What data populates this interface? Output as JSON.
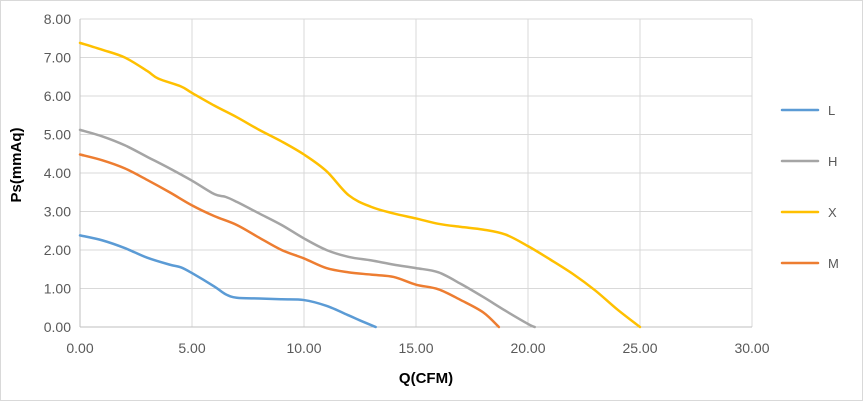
{
  "chart_data": {
    "type": "line",
    "title": "",
    "xlabel": "Q(CFM)",
    "ylabel": "Ps(mmAq)",
    "xlim": [
      0,
      30
    ],
    "ylim": [
      0,
      8
    ],
    "xticks": [
      "0.00",
      "5.00",
      "10.00",
      "15.00",
      "20.00",
      "25.00",
      "30.00"
    ],
    "yticks": [
      "0.00",
      "1.00",
      "2.00",
      "3.00",
      "4.00",
      "5.00",
      "6.00",
      "7.00",
      "8.00"
    ],
    "grid": true,
    "legend_position": "right",
    "series": [
      {
        "name": "L",
        "color": "#5b9bd5",
        "points": [
          [
            0,
            2.38
          ],
          [
            1,
            2.25
          ],
          [
            2,
            2.05
          ],
          [
            3,
            1.8
          ],
          [
            4,
            1.62
          ],
          [
            4.5,
            1.55
          ],
          [
            5,
            1.4
          ],
          [
            6,
            1.05
          ],
          [
            6.5,
            0.85
          ],
          [
            7,
            0.76
          ],
          [
            8,
            0.74
          ],
          [
            9,
            0.72
          ],
          [
            10,
            0.7
          ],
          [
            11,
            0.55
          ],
          [
            12,
            0.3
          ],
          [
            12.5,
            0.17
          ],
          [
            13.2,
            0.0
          ]
        ]
      },
      {
        "name": "H",
        "color": "#a5a5a5",
        "points": [
          [
            0,
            5.12
          ],
          [
            1,
            4.95
          ],
          [
            2,
            4.72
          ],
          [
            3,
            4.42
          ],
          [
            4,
            4.12
          ],
          [
            5,
            3.8
          ],
          [
            6,
            3.45
          ],
          [
            6.5,
            3.38
          ],
          [
            7,
            3.25
          ],
          [
            8,
            2.95
          ],
          [
            9,
            2.65
          ],
          [
            10,
            2.3
          ],
          [
            11,
            2.0
          ],
          [
            12,
            1.82
          ],
          [
            13,
            1.73
          ],
          [
            14,
            1.62
          ],
          [
            15,
            1.53
          ],
          [
            16,
            1.42
          ],
          [
            17,
            1.12
          ],
          [
            18,
            0.78
          ],
          [
            19,
            0.42
          ],
          [
            20,
            0.08
          ],
          [
            20.3,
            0.0
          ]
        ]
      },
      {
        "name": "X",
        "color": "#ffc000",
        "points": [
          [
            0,
            7.38
          ],
          [
            1,
            7.2
          ],
          [
            2,
            7.0
          ],
          [
            3,
            6.65
          ],
          [
            3.5,
            6.45
          ],
          [
            4.5,
            6.25
          ],
          [
            5,
            6.08
          ],
          [
            6,
            5.75
          ],
          [
            7,
            5.45
          ],
          [
            8,
            5.12
          ],
          [
            9,
            4.82
          ],
          [
            10,
            4.48
          ],
          [
            11,
            4.05
          ],
          [
            12,
            3.42
          ],
          [
            13,
            3.12
          ],
          [
            14,
            2.95
          ],
          [
            15,
            2.82
          ],
          [
            16,
            2.68
          ],
          [
            17,
            2.6
          ],
          [
            18,
            2.53
          ],
          [
            19,
            2.4
          ],
          [
            20,
            2.1
          ],
          [
            21,
            1.75
          ],
          [
            22,
            1.38
          ],
          [
            23,
            0.95
          ],
          [
            24,
            0.45
          ],
          [
            25,
            0.0
          ]
        ]
      },
      {
        "name": "M",
        "color": "#ed7d31",
        "points": [
          [
            0,
            4.48
          ],
          [
            1,
            4.33
          ],
          [
            2,
            4.12
          ],
          [
            3,
            3.82
          ],
          [
            4,
            3.5
          ],
          [
            5,
            3.16
          ],
          [
            6,
            2.88
          ],
          [
            7,
            2.65
          ],
          [
            8,
            2.32
          ],
          [
            9,
            2.0
          ],
          [
            10,
            1.78
          ],
          [
            11,
            1.53
          ],
          [
            12,
            1.42
          ],
          [
            13,
            1.36
          ],
          [
            14,
            1.3
          ],
          [
            15,
            1.1
          ],
          [
            16,
            0.98
          ],
          [
            17,
            0.7
          ],
          [
            18,
            0.38
          ],
          [
            18.7,
            0.0
          ]
        ]
      }
    ]
  }
}
